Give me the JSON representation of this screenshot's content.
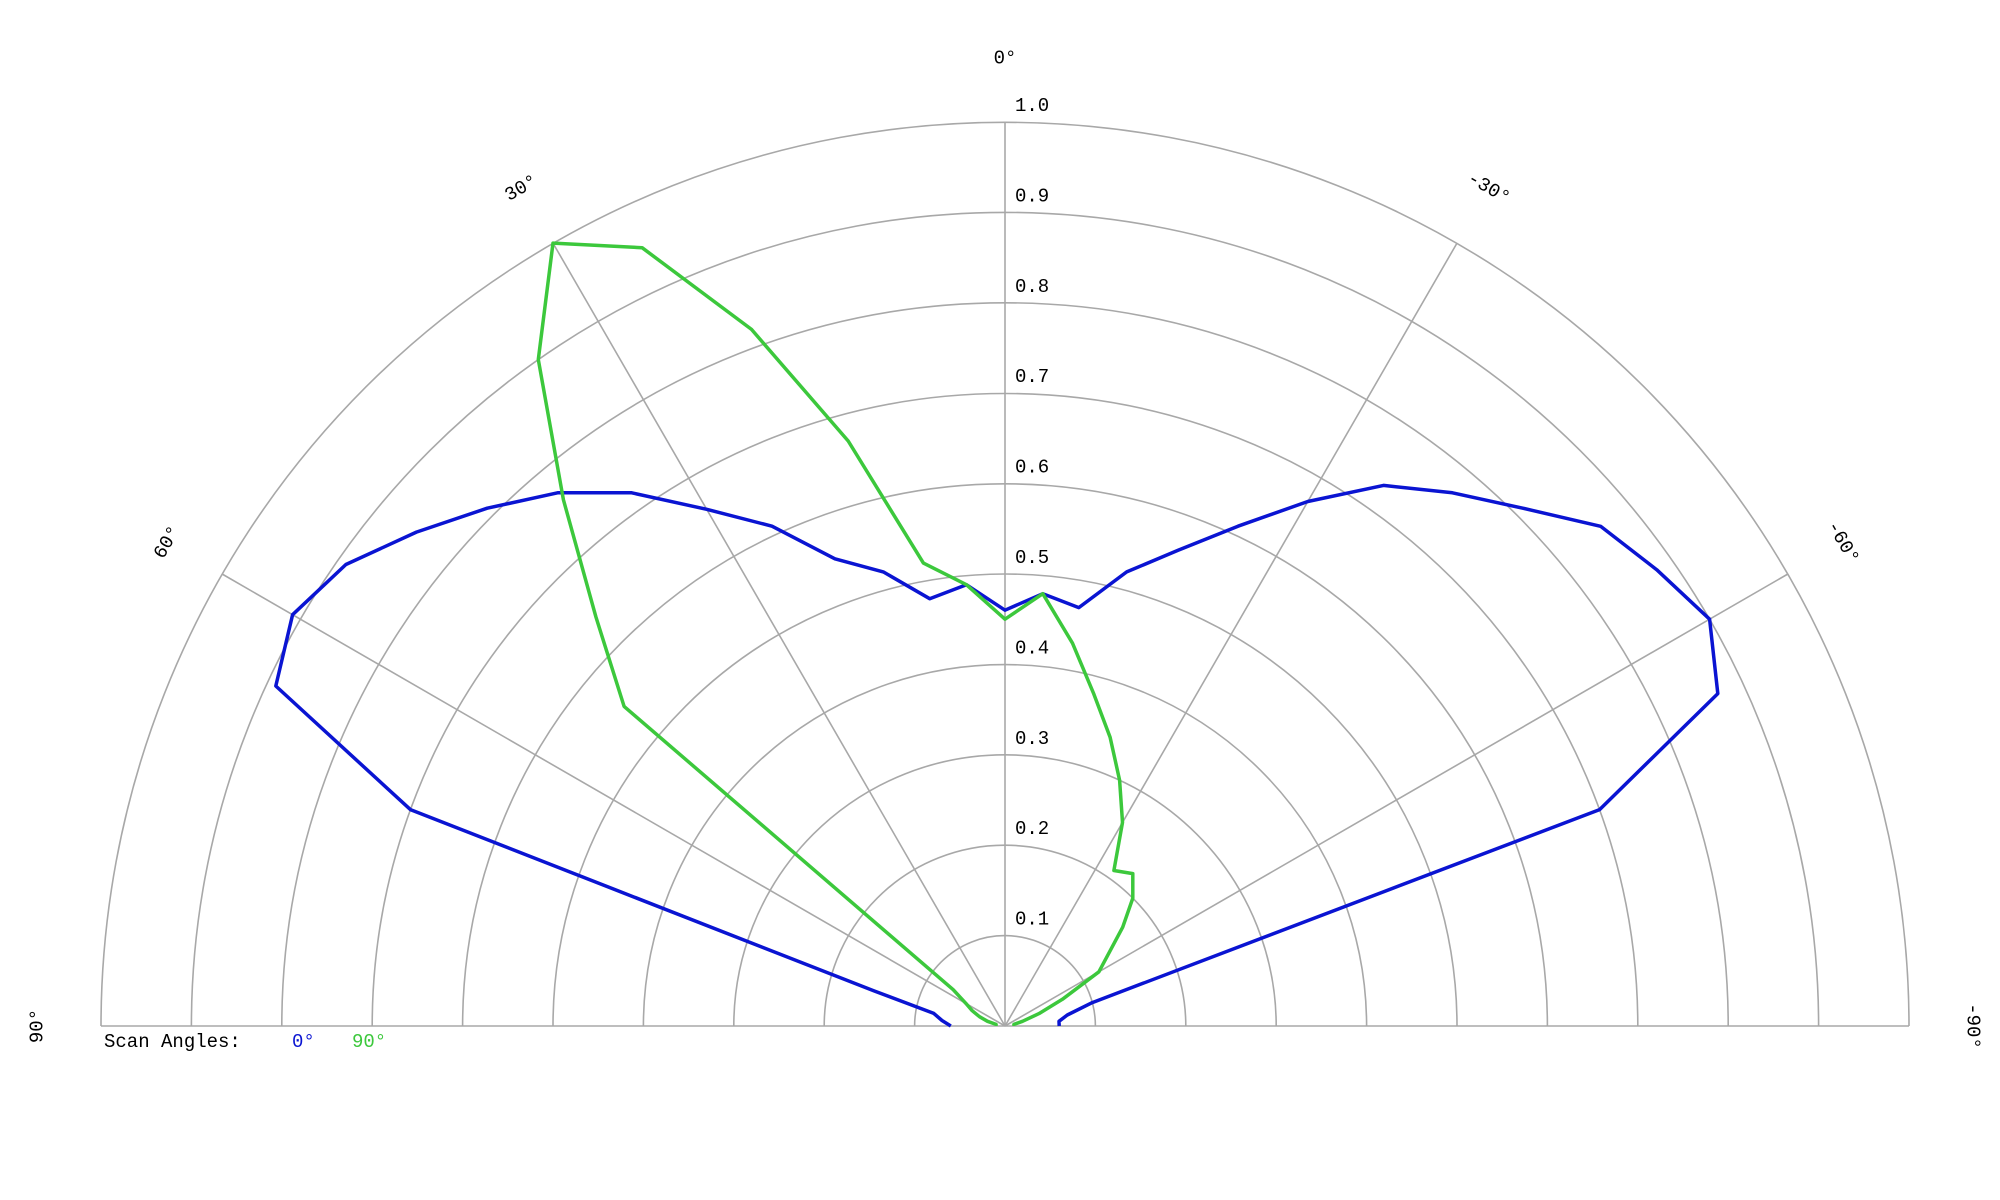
{
  "chart_data": {
    "type": "polar",
    "theta": [
      90,
      85,
      80,
      75,
      70,
      65,
      60,
      55,
      50,
      45,
      40,
      35,
      30,
      25,
      20,
      15,
      10,
      5,
      0,
      -5,
      -10,
      -15,
      -20,
      -25,
      -30,
      -35,
      -40,
      -45,
      -50,
      -55,
      -60,
      -65,
      -70,
      -75,
      -80,
      -85,
      -90
    ],
    "thetalim": [
      90,
      -90
    ],
    "thetaticks": [
      {
        "value": 90,
        "label": "90°"
      },
      {
        "value": 60,
        "label": "60°"
      },
      {
        "value": 30,
        "label": "30°"
      },
      {
        "value": 0,
        "label": "0°"
      },
      {
        "value": -30,
        "label": "-30°"
      },
      {
        "value": -60,
        "label": "-60°"
      },
      {
        "value": -90,
        "label": "-90°"
      }
    ],
    "rlim": [
      0,
      1
    ],
    "rticks": [
      0.1,
      0.2,
      0.3,
      0.4,
      0.5,
      0.6,
      0.7,
      0.8,
      0.9,
      {
        "value": 1,
        "label": "1.0"
      }
    ],
    "grid": true,
    "legend_title": "Scan Angles:",
    "series": [
      {
        "name": "0°",
        "color": "#0a14d2",
        "values": [
          0.06,
          0.07,
          0.08,
          0.15,
          0.7,
          0.89,
          0.91,
          0.89,
          0.85,
          0.81,
          0.77,
          0.72,
          0.66,
          0.61,
          0.55,
          0.52,
          0.48,
          0.49,
          0.46,
          0.48,
          0.47,
          0.52,
          0.56,
          0.61,
          0.67,
          0.73,
          0.77,
          0.81,
          0.86,
          0.88,
          0.9,
          0.87,
          0.7,
          0.1,
          0.07,
          0.06,
          0.06
        ]
      },
      {
        "name": "90°",
        "color": "#3cc83c",
        "values": [
          0.01,
          0.01,
          0.01,
          0.02,
          0.03,
          0.04,
          0.05,
          0.07,
          0.55,
          0.64,
          0.76,
          0.9,
          1.0,
          0.95,
          0.82,
          0.67,
          0.52,
          0.49,
          0.45,
          0.48,
          0.43,
          0.38,
          0.34,
          0.3,
          0.26,
          0.21,
          0.22,
          0.2,
          0.17,
          0.14,
          0.12,
          0.07,
          0.04,
          0.02,
          0.01,
          0.01,
          0.01
        ]
      }
    ]
  }
}
